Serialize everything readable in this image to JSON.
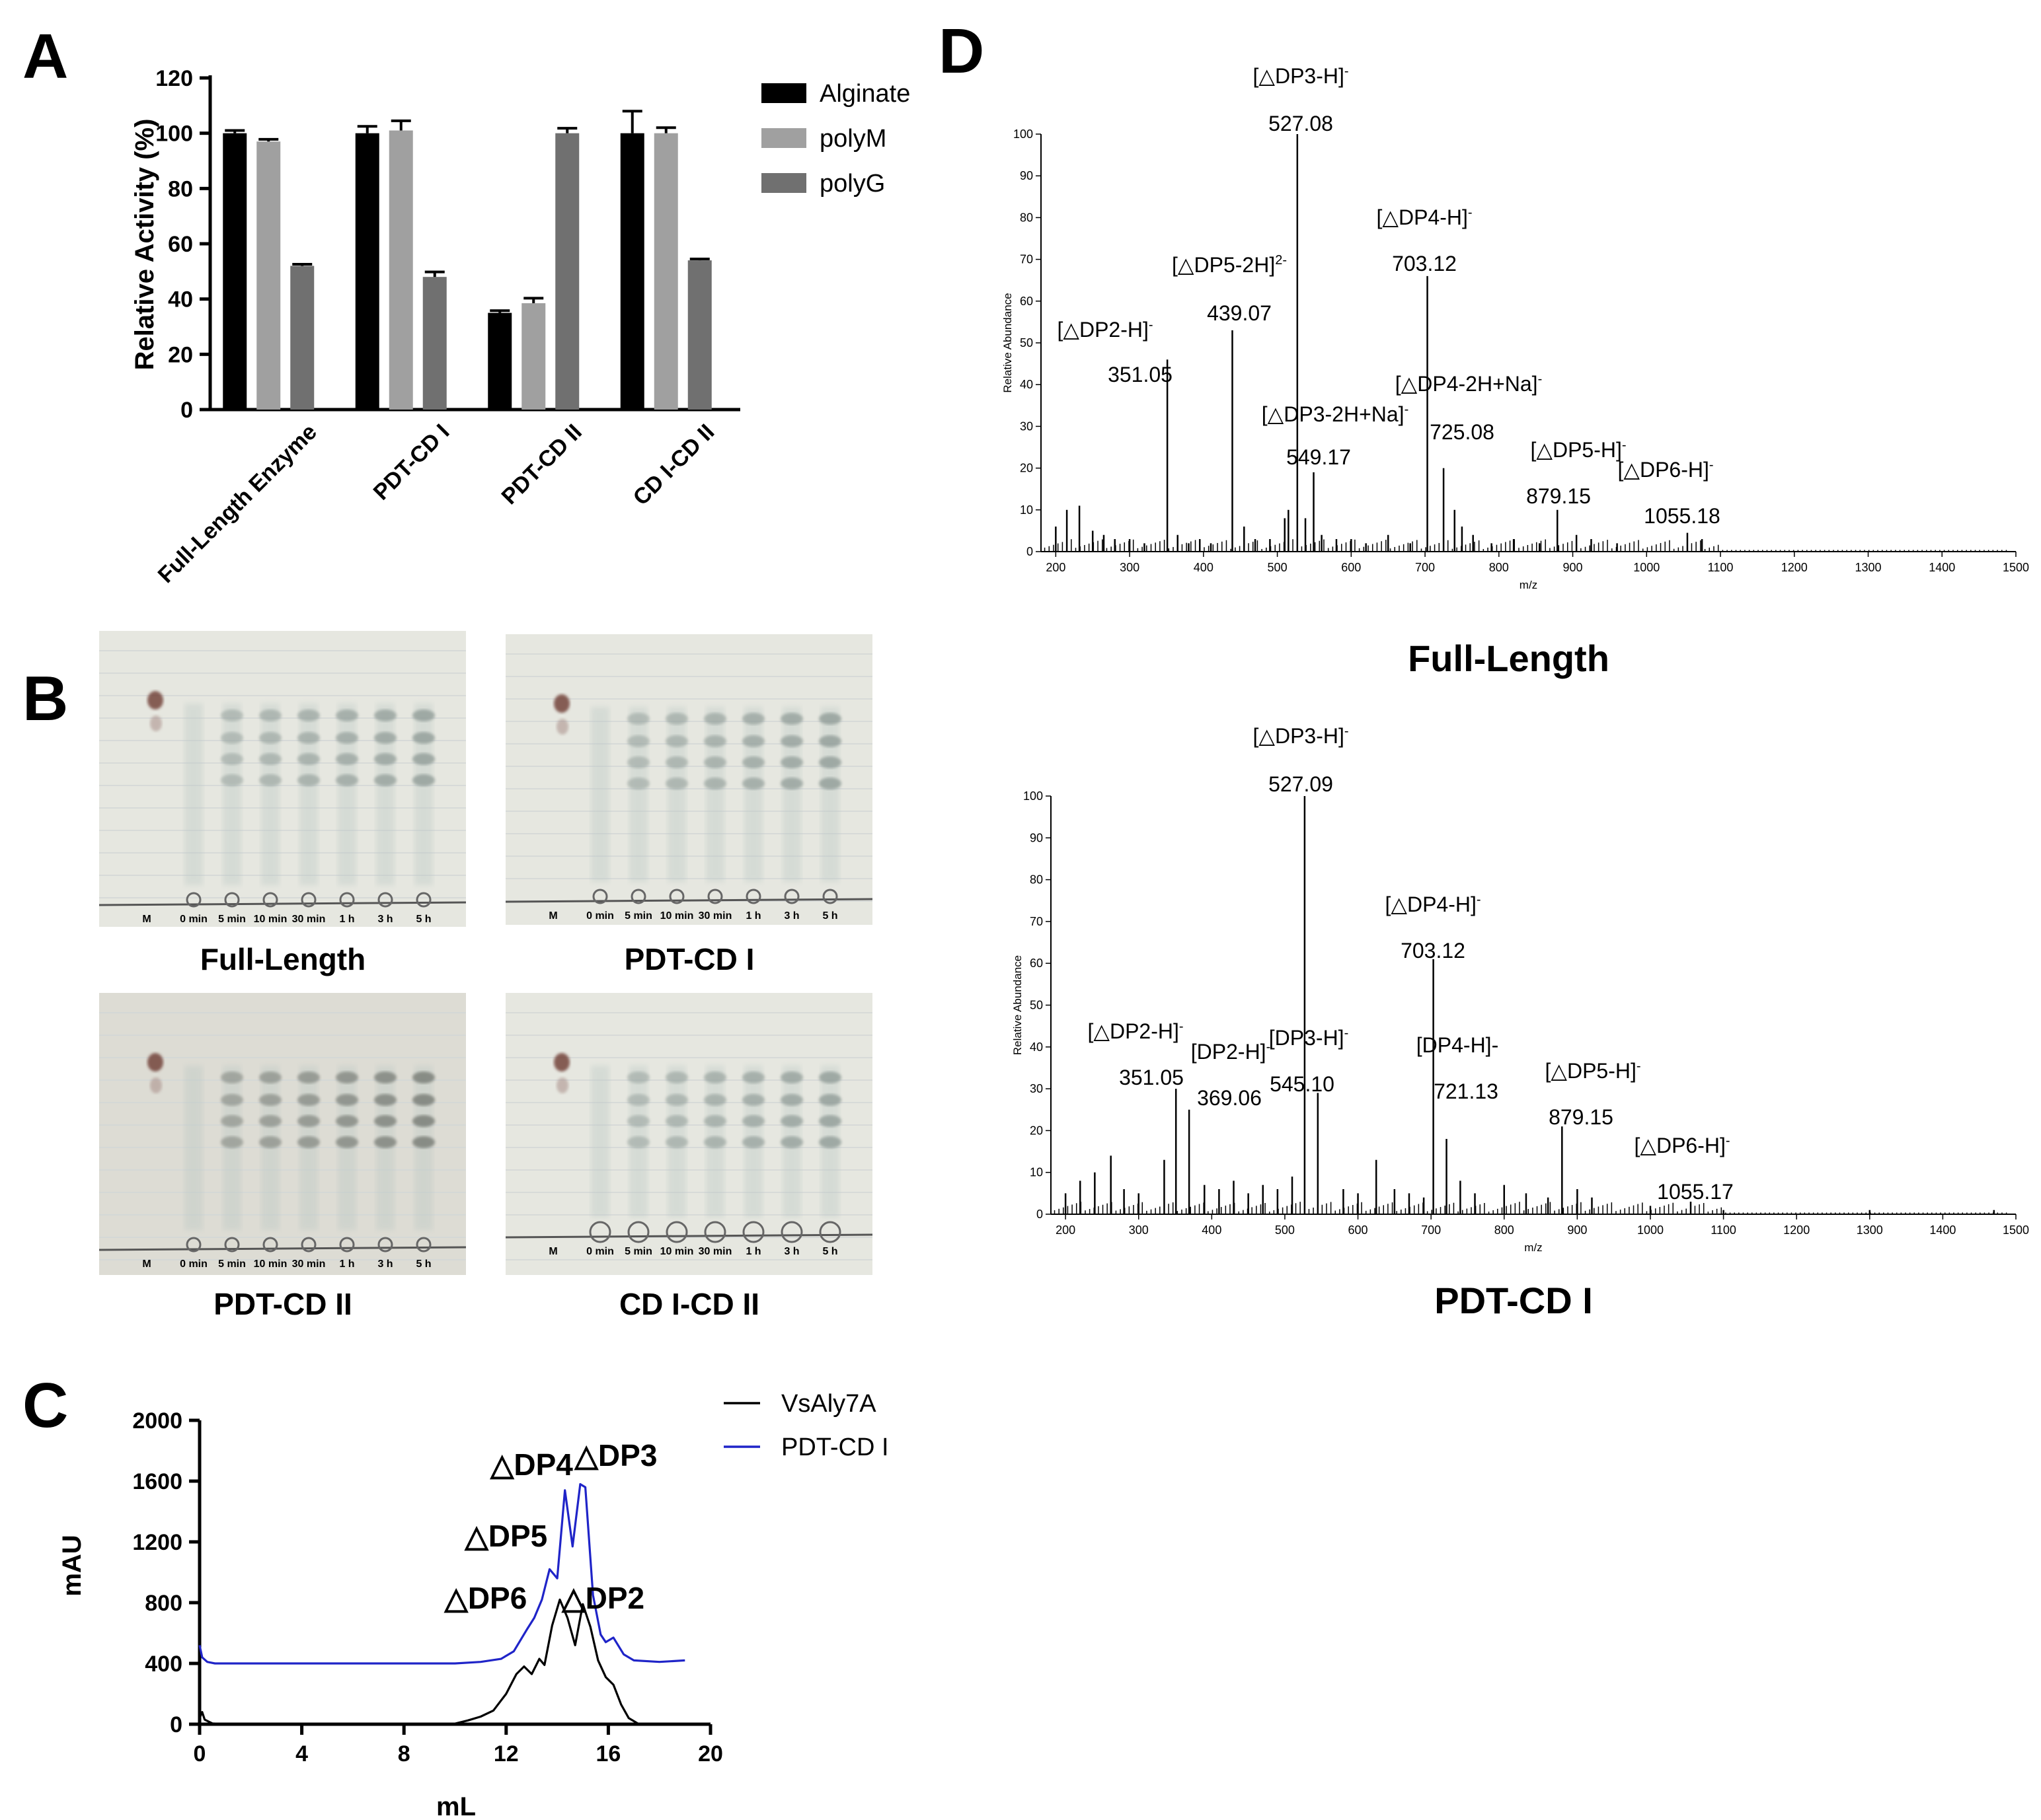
{
  "panel_letters": [
    "A",
    "B",
    "C",
    "D"
  ],
  "chart_data": [
    {
      "id": "A",
      "type": "bar",
      "ylabel": "Relative Activity (%)",
      "ylim": [
        0,
        120
      ],
      "yticks": [
        "0",
        "20",
        "40",
        "60",
        "80",
        "100",
        "120"
      ],
      "categories": [
        "Full-Length Enzyme",
        "PDT-CD I",
        "PDT-CD II",
        "CD I-CD II"
      ],
      "series": [
        {
          "name": "Alginate",
          "color": "#000000",
          "values": [
            100,
            100,
            35,
            100
          ],
          "errors": [
            1,
            2.5,
            0.8,
            8
          ]
        },
        {
          "name": "polyM",
          "color": "#a0a0a0",
          "values": [
            97,
            101,
            38.5,
            100
          ],
          "errors": [
            0.8,
            3.5,
            1.8,
            2
          ]
        },
        {
          "name": "polyG",
          "color": "#707070",
          "values": [
            52,
            48,
            100,
            54
          ],
          "errors": [
            0.6,
            1.8,
            1.8,
            0.5
          ]
        }
      ],
      "legend_position": "top-right"
    },
    {
      "id": "C",
      "type": "line",
      "xlabel": "mL",
      "ylabel": "mAU",
      "xlim": [
        0,
        20
      ],
      "ylim": [
        0,
        2000
      ],
      "xticks": [
        "0",
        "4",
        "8",
        "12",
        "16",
        "20"
      ],
      "yticks": [
        "0",
        "400",
        "800",
        "1200",
        "1600",
        "2000"
      ],
      "series": [
        {
          "name": "VsAly7A",
          "color": "#000000",
          "x": [
            0,
            0.1,
            0.2,
            0.5,
            1,
            9.9,
            10.5,
            11,
            11.5,
            12,
            12.4,
            12.7,
            13,
            13.3,
            13.5,
            13.8,
            14.1,
            14.4,
            14.7,
            15,
            15.3,
            15.6,
            15.9,
            16.2,
            16.5,
            16.8,
            17.2,
            19
          ],
          "y": [
            40,
            80,
            30,
            5,
            0,
            0,
            25,
            50,
            90,
            200,
            330,
            380,
            330,
            430,
            390,
            650,
            820,
            700,
            520,
            790,
            640,
            420,
            310,
            260,
            130,
            40,
            0,
            0
          ]
        },
        {
          "name": "PDT-CD I",
          "color": "#1f24c8",
          "x": [
            0,
            0.1,
            0.3,
            0.6,
            1,
            10,
            11,
            11.8,
            12.3,
            12.8,
            13.1,
            13.4,
            13.7,
            14,
            14.3,
            14.6,
            14.9,
            15.1,
            15.4,
            15.7,
            15.9,
            16.2,
            16.6,
            17,
            18,
            19
          ],
          "y": [
            520,
            440,
            410,
            400,
            400,
            400,
            410,
            430,
            480,
            620,
            700,
            820,
            1020,
            960,
            1540,
            1170,
            1580,
            1560,
            850,
            590,
            540,
            570,
            460,
            420,
            410,
            420
          ]
        }
      ],
      "annotations": [
        {
          "text": "△DP3",
          "x": 16.3,
          "y": 1700
        },
        {
          "text": "△DP4",
          "x": 13.0,
          "y": 1640
        },
        {
          "text": "△DP5",
          "x": 12.0,
          "y": 1170
        },
        {
          "text": "△DP6",
          "x": 11.2,
          "y": 760
        },
        {
          "text": "△DP2",
          "x": 15.8,
          "y": 760
        }
      ],
      "legend_position": "top-right"
    },
    {
      "id": "D-full-length",
      "type": "bar",
      "title": "Full-Length",
      "xlabel": "m/z",
      "ylabel": "Relative Abundance",
      "xlim": [
        180,
        1500
      ],
      "ylim": [
        0,
        100
      ],
      "xticks": [
        "200",
        "300",
        "400",
        "500",
        "600",
        "700",
        "800",
        "900",
        "1000",
        "1100",
        "1200",
        "1300",
        "1400",
        "1500"
      ],
      "yticks": [
        "0",
        "10",
        "20",
        "30",
        "40",
        "50",
        "60",
        "70",
        "80",
        "90",
        "100"
      ],
      "peaks": {
        "x": [
          351.05,
          439.07,
          527.08,
          549.17,
          703.12,
          725.08,
          879.15,
          1055.18,
          200,
          215,
          232,
          250,
          265,
          280,
          300,
          320,
          365,
          380,
          395,
          410,
          455,
          470,
          490,
          510,
          515,
          538,
          560,
          580,
          600,
          620,
          650,
          680,
          740,
          750,
          765,
          790,
          820,
          855,
          905,
          925,
          960,
          1075
        ],
        "y": [
          46,
          53,
          100,
          19,
          66,
          20,
          10,
          4.5,
          6,
          10,
          11,
          5,
          4,
          3,
          3,
          2,
          4,
          2,
          3,
          2,
          6,
          3,
          3,
          8,
          10,
          8,
          4,
          3,
          3,
          2,
          4,
          2,
          10,
          6,
          4,
          2,
          3,
          2,
          4,
          3,
          2,
          3
        ]
      },
      "labels": [
        {
          "formula": "[△DP2-H]",
          "sup": "-",
          "mz": "351.05"
        },
        {
          "formula": "[△DP5-2H]",
          "sup": "2-",
          "mz": "439.07"
        },
        {
          "formula": "[△DP3-H]",
          "sup": "-",
          "mz": "527.08"
        },
        {
          "formula": "[△DP3-2H+Na]",
          "sup": "-",
          "mz": "549.17"
        },
        {
          "formula": "[△DP4-H]",
          "sup": "-",
          "mz": "703.12"
        },
        {
          "formula": "[△DP4-2H+Na]",
          "sup": "-",
          "mz": "725.08"
        },
        {
          "formula": "[△DP5-H]",
          "sup": "-",
          "mz": "879.15"
        },
        {
          "formula": "[△DP6-H]",
          "sup": "-",
          "mz": "1055.18"
        }
      ]
    },
    {
      "id": "D-pdt-cd-i",
      "type": "bar",
      "title": "PDT-CD I",
      "xlabel": "m/z",
      "ylabel": "Relative Abundance",
      "xlim": [
        180,
        1500
      ],
      "ylim": [
        0,
        100
      ],
      "xticks": [
        "200",
        "300",
        "400",
        "500",
        "600",
        "700",
        "800",
        "900",
        "1000",
        "1100",
        "1200",
        "1300",
        "1400",
        "1500"
      ],
      "yticks": [
        "0",
        "10",
        "20",
        "30",
        "40",
        "50",
        "60",
        "70",
        "80",
        "90",
        "100"
      ],
      "peaks": {
        "x": [
          351.05,
          369.06,
          527.09,
          545.1,
          703.12,
          721.13,
          879.15,
          1055.17,
          200,
          220,
          240,
          262,
          280,
          300,
          335,
          390,
          410,
          430,
          450,
          470,
          490,
          510,
          580,
          600,
          625,
          650,
          670,
          690,
          740,
          760,
          800,
          830,
          860,
          900,
          920,
          1000,
          1100,
          1300,
          1470
        ],
        "y": [
          30,
          25,
          100,
          29,
          61,
          18,
          21,
          3,
          5,
          8,
          10,
          14,
          6,
          5,
          13,
          7,
          6,
          8,
          5,
          7,
          6,
          9,
          6,
          5,
          13,
          6,
          5,
          4,
          8,
          5,
          7,
          5,
          4,
          6,
          4,
          2,
          1,
          1,
          1
        ]
      },
      "labels": [
        {
          "formula": "[△DP2-H]",
          "sup": "-",
          "mz": "351.05"
        },
        {
          "formula": "[DP2-H]",
          "sup": "-",
          "mz": "369.06"
        },
        {
          "formula": "[△DP3-H]",
          "sup": "-",
          "mz": "527.09"
        },
        {
          "formula": "[DP3-H]",
          "sup": "-",
          "mz": "545.10"
        },
        {
          "formula": "[△DP4-H]",
          "sup": "-",
          "mz": "703.12"
        },
        {
          "formula": "[DP4-H]-",
          "sup": "",
          "mz": "721.13"
        },
        {
          "formula": "[△DP5-H]",
          "sup": "-",
          "mz": "879.15"
        },
        {
          "formula": "[△DP6-H]",
          "sup": "-",
          "mz": "1055.17"
        }
      ]
    }
  ],
  "tlc": {
    "lane_labels": [
      "M",
      "0 min",
      "5 min",
      "10 min",
      "30 min",
      "1 h",
      "3 h",
      "5 h"
    ],
    "plates": [
      {
        "caption": "Full-Length"
      },
      {
        "caption": "PDT-CD I"
      },
      {
        "caption": "PDT-CD II"
      },
      {
        "caption": "CD I-CD II"
      }
    ]
  }
}
